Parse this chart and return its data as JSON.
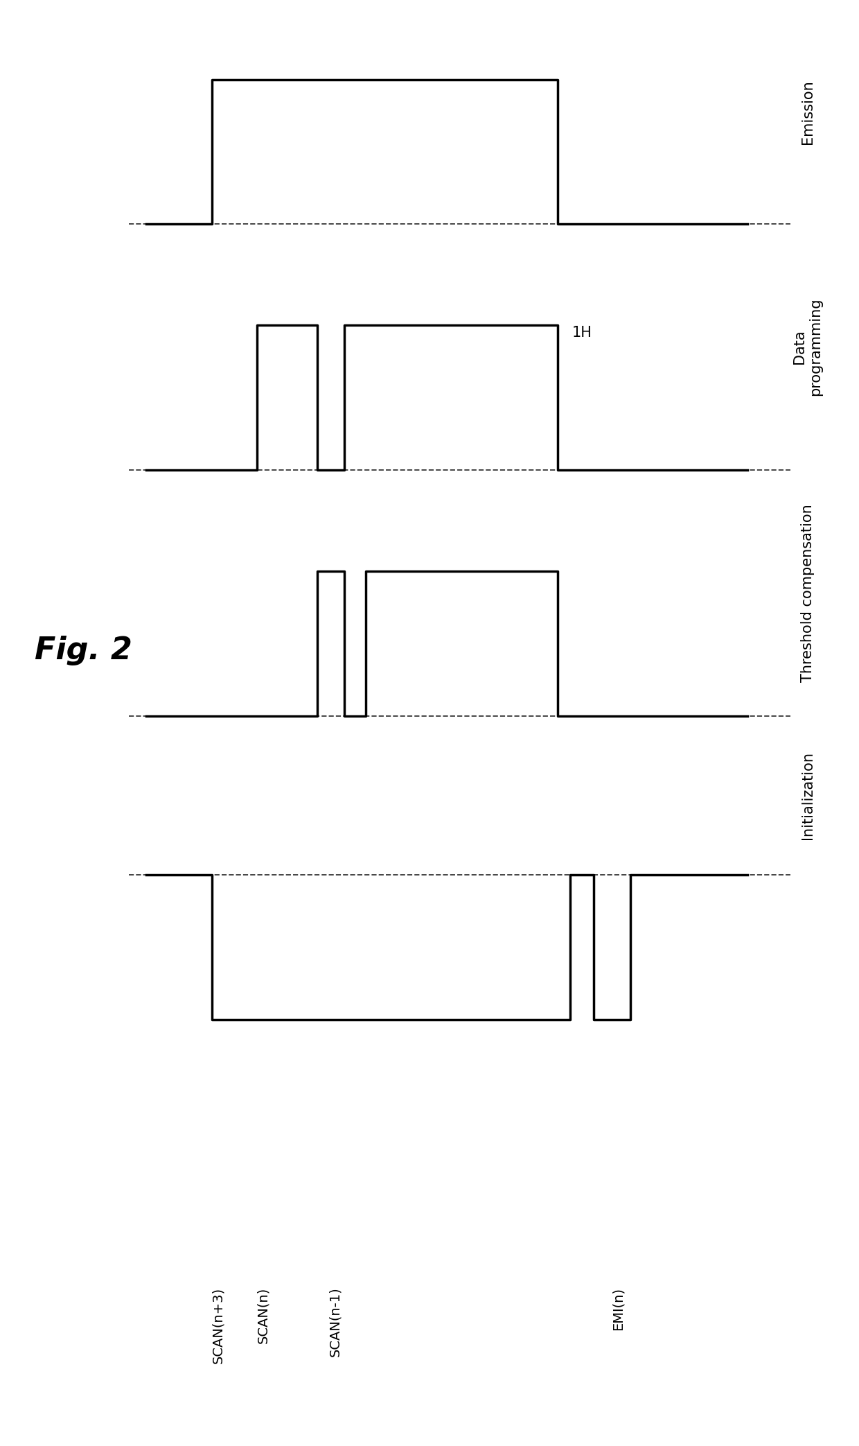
{
  "background_color": "#ffffff",
  "line_color": "#000000",
  "dashed_color": "#444444",
  "fig2_label": "Fig. 2",
  "fig2_fontsize": 32,
  "signals": [
    "SCAN(n+3)",
    "SCAN(n)",
    "SCAN(n-1)",
    "EMI(n)"
  ],
  "phase_labels": [
    "Initialization",
    "Threshold compensation",
    "Data\nprogramming",
    "Emission"
  ],
  "one_h_label": "1H",
  "label_fontsize": 15,
  "signal_fontsize": 14,
  "waveform_linewidth": 2.5,
  "dashed_linewidth": 1.4,
  "sig_label_fontsize": 14
}
